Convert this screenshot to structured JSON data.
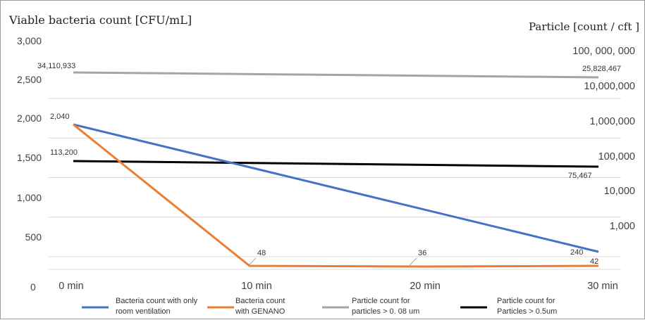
{
  "chart_data": {
    "type": "line",
    "ylabel_left": "Viable bacteria count [CFU/mL]",
    "ylabel_right": "Particle [count / cft ]",
    "categories": [
      "0 min",
      "10 min",
      "20 min",
      "30 min"
    ],
    "left_axis": {
      "ticks": [
        "3,000",
        "2,500",
        "2,000",
        "1,500",
        "1,000",
        "500",
        "0"
      ],
      "tick_values": [
        3000,
        2500,
        2000,
        1500,
        1000,
        500,
        0
      ],
      "ylim": [
        0,
        3000
      ]
    },
    "right_axis": {
      "scale": "log",
      "ticks": [
        "100, 000, 000",
        "10,000,000",
        "1,000,000",
        "100,000",
        "10,000",
        "1,000"
      ],
      "tick_values": [
        100000000,
        10000000,
        1000000,
        100000,
        10000,
        1000
      ]
    },
    "series": [
      {
        "name": "Bacteria count with only room ventilation",
        "legend_lines": [
          "Bacteria count with only",
          "room ventilation"
        ],
        "axis": "left",
        "color": "#4472c4",
        "values": [
          2040,
          null,
          null,
          240
        ],
        "points": [
          {
            "x": 0,
            "y": 2040
          },
          {
            "x": 3,
            "y": 240
          }
        ],
        "labels": [
          "",
          "",
          "",
          "240"
        ]
      },
      {
        "name": "Bacteria count with GENANO",
        "legend_lines": [
          "Bacteria count",
          "with GENANO"
        ],
        "axis": "left",
        "color": "#ed7d31",
        "values": [
          2040,
          48,
          36,
          42
        ],
        "labels": [
          "2,040",
          "48",
          "36",
          "42"
        ]
      },
      {
        "name": "Particle count for particles > 0. 08 um",
        "legend_lines": [
          "Particle count for",
          "particles > 0. 08 um"
        ],
        "axis": "right",
        "color": "#a5a5a5",
        "values": [
          34110933,
          null,
          null,
          25828467
        ],
        "points": [
          {
            "x": 0,
            "y": 34110933
          },
          {
            "x": 3,
            "y": 25828467
          }
        ],
        "labels": [
          "34,110,933",
          "",
          "",
          "25,828,467"
        ]
      },
      {
        "name": "Particle count for Particles > 0.5um",
        "legend_lines": [
          "Particle count for",
          "Particles > 0.5um"
        ],
        "axis": "right",
        "color": "#000000",
        "values": [
          113200,
          null,
          null,
          75467
        ],
        "points": [
          {
            "x": 0,
            "y": 113200
          },
          {
            "x": 3,
            "y": 75467
          }
        ],
        "labels": [
          "113,200",
          "",
          "",
          "75,467"
        ]
      }
    ],
    "grid": true,
    "legend_position": "bottom"
  }
}
